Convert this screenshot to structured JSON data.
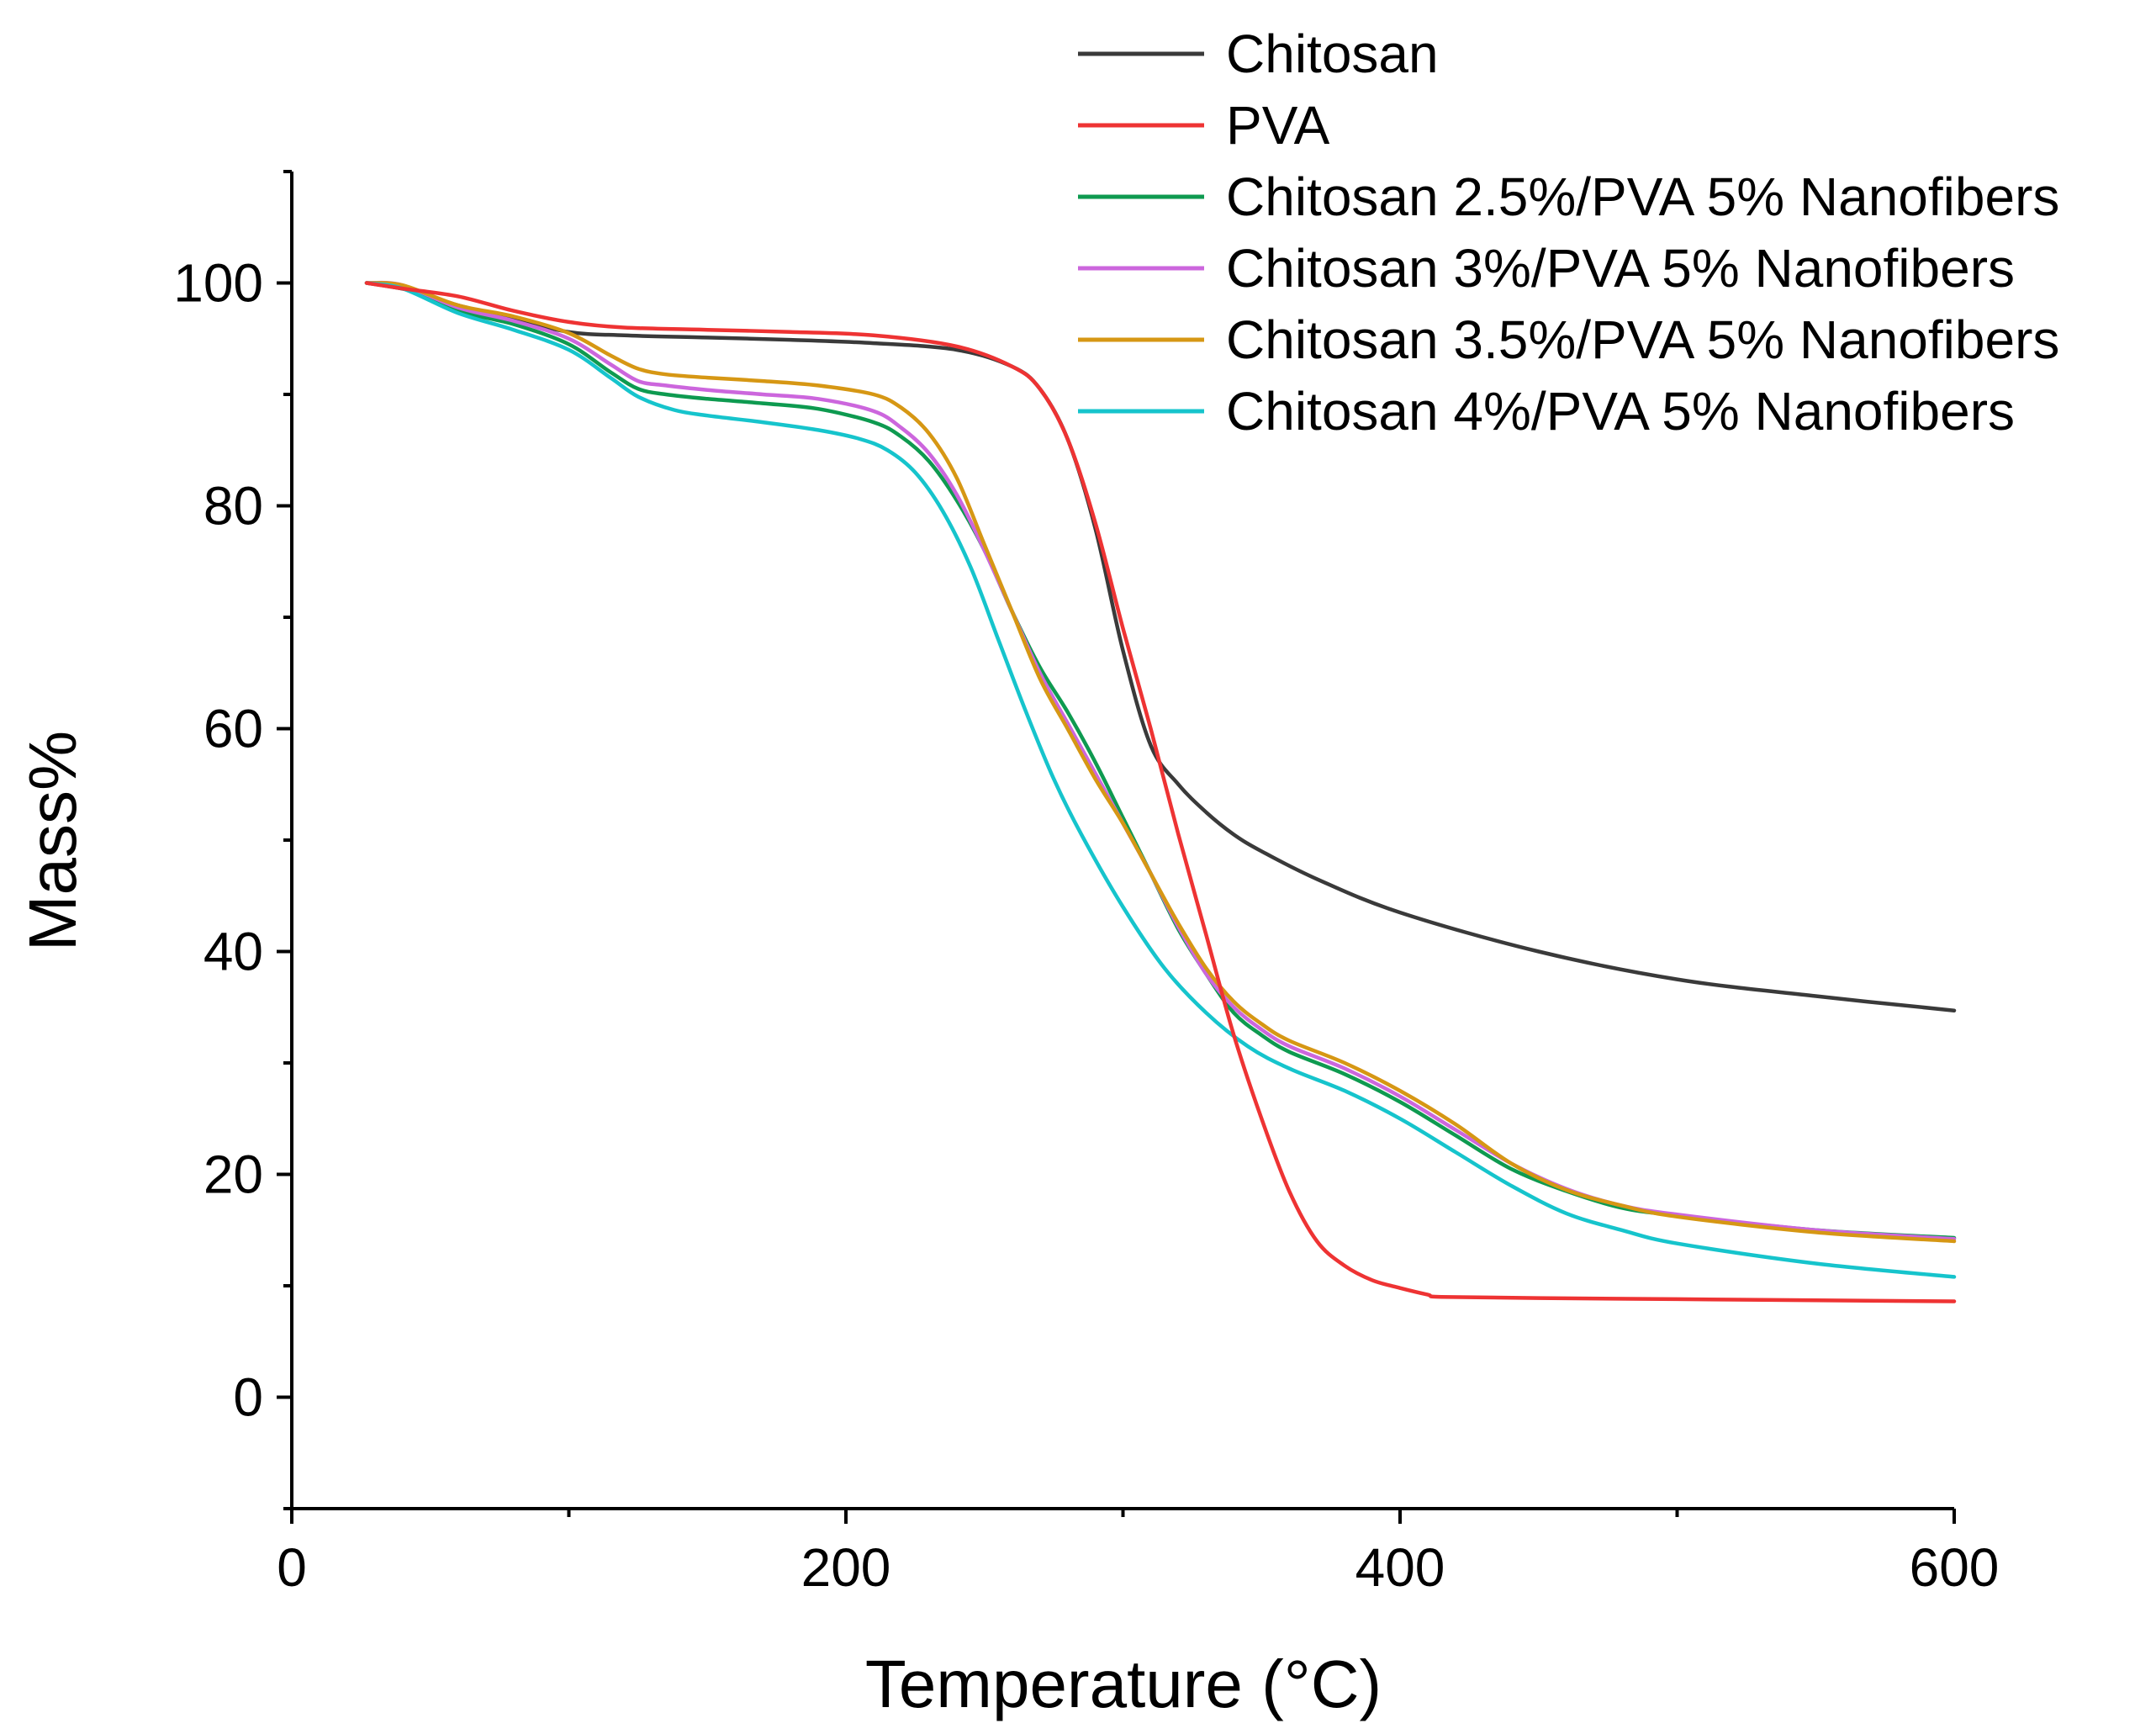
{
  "chart_data": {
    "type": "line",
    "title": "",
    "xlabel": "Temperature (°C)",
    "ylabel": "Mass%",
    "xlim": [
      0,
      600
    ],
    "ylim": [
      -10,
      110
    ],
    "xticks": [
      0,
      200,
      400,
      600
    ],
    "xminor": [
      100,
      300,
      500
    ],
    "yticks": [
      0,
      20,
      40,
      60,
      80,
      100
    ],
    "yminor": [
      -10,
      10,
      30,
      50,
      70,
      90,
      110
    ],
    "xtick_labels": [
      "0",
      "200",
      "400",
      "600"
    ],
    "ytick_labels": [
      "0",
      "20",
      "40",
      "60",
      "80",
      "100"
    ],
    "grid": false,
    "legend_position": "top-right",
    "series": [
      {
        "name": "Chitosan",
        "color": "#3a3a3a",
        "x": [
          27,
          35,
          45,
          60,
          80,
          100,
          120,
          150,
          180,
          210,
          240,
          260,
          270,
          280,
          290,
          300,
          310,
          320,
          330,
          340,
          350,
          370,
          400,
          450,
          500,
          550,
          600
        ],
        "y": [
          100,
          99.7,
          99.2,
          98,
          96.8,
          95.6,
          95.3,
          95.1,
          94.9,
          94.6,
          94,
          92.5,
          90.5,
          86,
          78,
          67,
          58.5,
          55,
          52.5,
          50.5,
          49,
          46.5,
          43.5,
          40,
          37.5,
          36,
          34.7
        ]
      },
      {
        "name": "PVA",
        "color": "#ee3333",
        "x": [
          27,
          40,
          60,
          80,
          100,
          120,
          150,
          180,
          210,
          240,
          260,
          270,
          280,
          290,
          300,
          310,
          320,
          330,
          340,
          350,
          360,
          370,
          380,
          390,
          400,
          410,
          415,
          450,
          500,
          550,
          600
        ],
        "y": [
          100,
          99.5,
          98.8,
          97.5,
          96.5,
          96,
          95.8,
          95.6,
          95.3,
          94.3,
          92.5,
          90.5,
          86,
          78.5,
          69,
          60,
          50.5,
          41.5,
          32.5,
          25,
          18.5,
          14,
          11.8,
          10.5,
          9.8,
          9.2,
          9,
          8.9,
          8.8,
          8.7,
          8.6
        ]
      },
      {
        "name": "Chitosan 2.5%/PVA 5% Nanofibers",
        "color": "#0e9a50",
        "x": [
          27,
          40,
          60,
          80,
          100,
          115,
          125,
          135,
          150,
          170,
          190,
          210,
          220,
          230,
          240,
          250,
          260,
          270,
          280,
          290,
          300,
          310,
          320,
          330,
          340,
          350,
          360,
          380,
          400,
          420,
          440,
          460,
          480,
          500,
          550,
          600
        ],
        "y": [
          100,
          99.7,
          97.5,
          96.3,
          94.5,
          92,
          90.5,
          90,
          89.6,
          89.2,
          88.7,
          87.5,
          86.2,
          84,
          80.5,
          76,
          70.5,
          65.5,
          61.5,
          57,
          52,
          47,
          42,
          38,
          34.5,
          32.5,
          31,
          29,
          26.5,
          23.5,
          20.5,
          18.5,
          17,
          16.3,
          15,
          14.3
        ]
      },
      {
        "name": "Chitosan 3%/PVA 5% Nanofibers",
        "color": "#cc66dd",
        "x": [
          27,
          40,
          60,
          80,
          100,
          115,
          125,
          135,
          150,
          170,
          190,
          210,
          220,
          230,
          240,
          250,
          260,
          270,
          280,
          290,
          300,
          310,
          320,
          330,
          340,
          350,
          360,
          380,
          400,
          420,
          440,
          460,
          480,
          500,
          550,
          600
        ],
        "y": [
          100,
          99.8,
          97.8,
          96.6,
          95,
          92.7,
          91.2,
          90.8,
          90.4,
          90,
          89.6,
          88.5,
          87,
          84.7,
          81,
          76,
          70.5,
          65,
          60.5,
          56,
          51.5,
          47,
          42.2,
          38,
          35,
          33,
          31.5,
          29.5,
          27,
          24,
          21,
          18.7,
          17.2,
          16.4,
          15,
          14.2
        ]
      },
      {
        "name": "Chitosan 3.5%/PVA 5% Nanofibers",
        "color": "#d69714",
        "x": [
          27,
          40,
          60,
          80,
          100,
          115,
          125,
          135,
          150,
          170,
          190,
          210,
          220,
          230,
          240,
          250,
          260,
          270,
          280,
          290,
          300,
          310,
          320,
          330,
          340,
          350,
          360,
          380,
          400,
          420,
          440,
          460,
          480,
          500,
          550,
          600
        ],
        "y": [
          100,
          99.8,
          98,
          97,
          95.5,
          93.5,
          92.3,
          91.8,
          91.5,
          91.2,
          90.8,
          90,
          88.8,
          86.5,
          82.5,
          76.5,
          70.5,
          64.5,
          60,
          55.5,
          51.5,
          47,
          42.5,
          38.5,
          35.5,
          33.5,
          32,
          30,
          27.5,
          24.5,
          21,
          18.6,
          17.2,
          16.2,
          14.8,
          14
        ]
      },
      {
        "name": "Chitosan 4%/PVA 5% Nanofibers",
        "color": "#16c4cc",
        "x": [
          27,
          40,
          60,
          80,
          100,
          115,
          125,
          138,
          150,
          170,
          190,
          205,
          215,
          225,
          235,
          245,
          255,
          265,
          275,
          285,
          300,
          315,
          330,
          345,
          360,
          380,
          400,
          420,
          440,
          460,
          480,
          500,
          550,
          600
        ],
        "y": [
          100,
          99.5,
          97.3,
          95.8,
          94,
          91.5,
          89.8,
          88.6,
          88.1,
          87.5,
          86.8,
          86,
          85,
          83,
          79.5,
          74.5,
          68,
          61.5,
          55.5,
          50.5,
          44,
          38.5,
          34.5,
          31.5,
          29.5,
          27.5,
          25,
          22,
          19,
          16.5,
          15,
          13.8,
          12,
          10.8
        ]
      }
    ]
  }
}
